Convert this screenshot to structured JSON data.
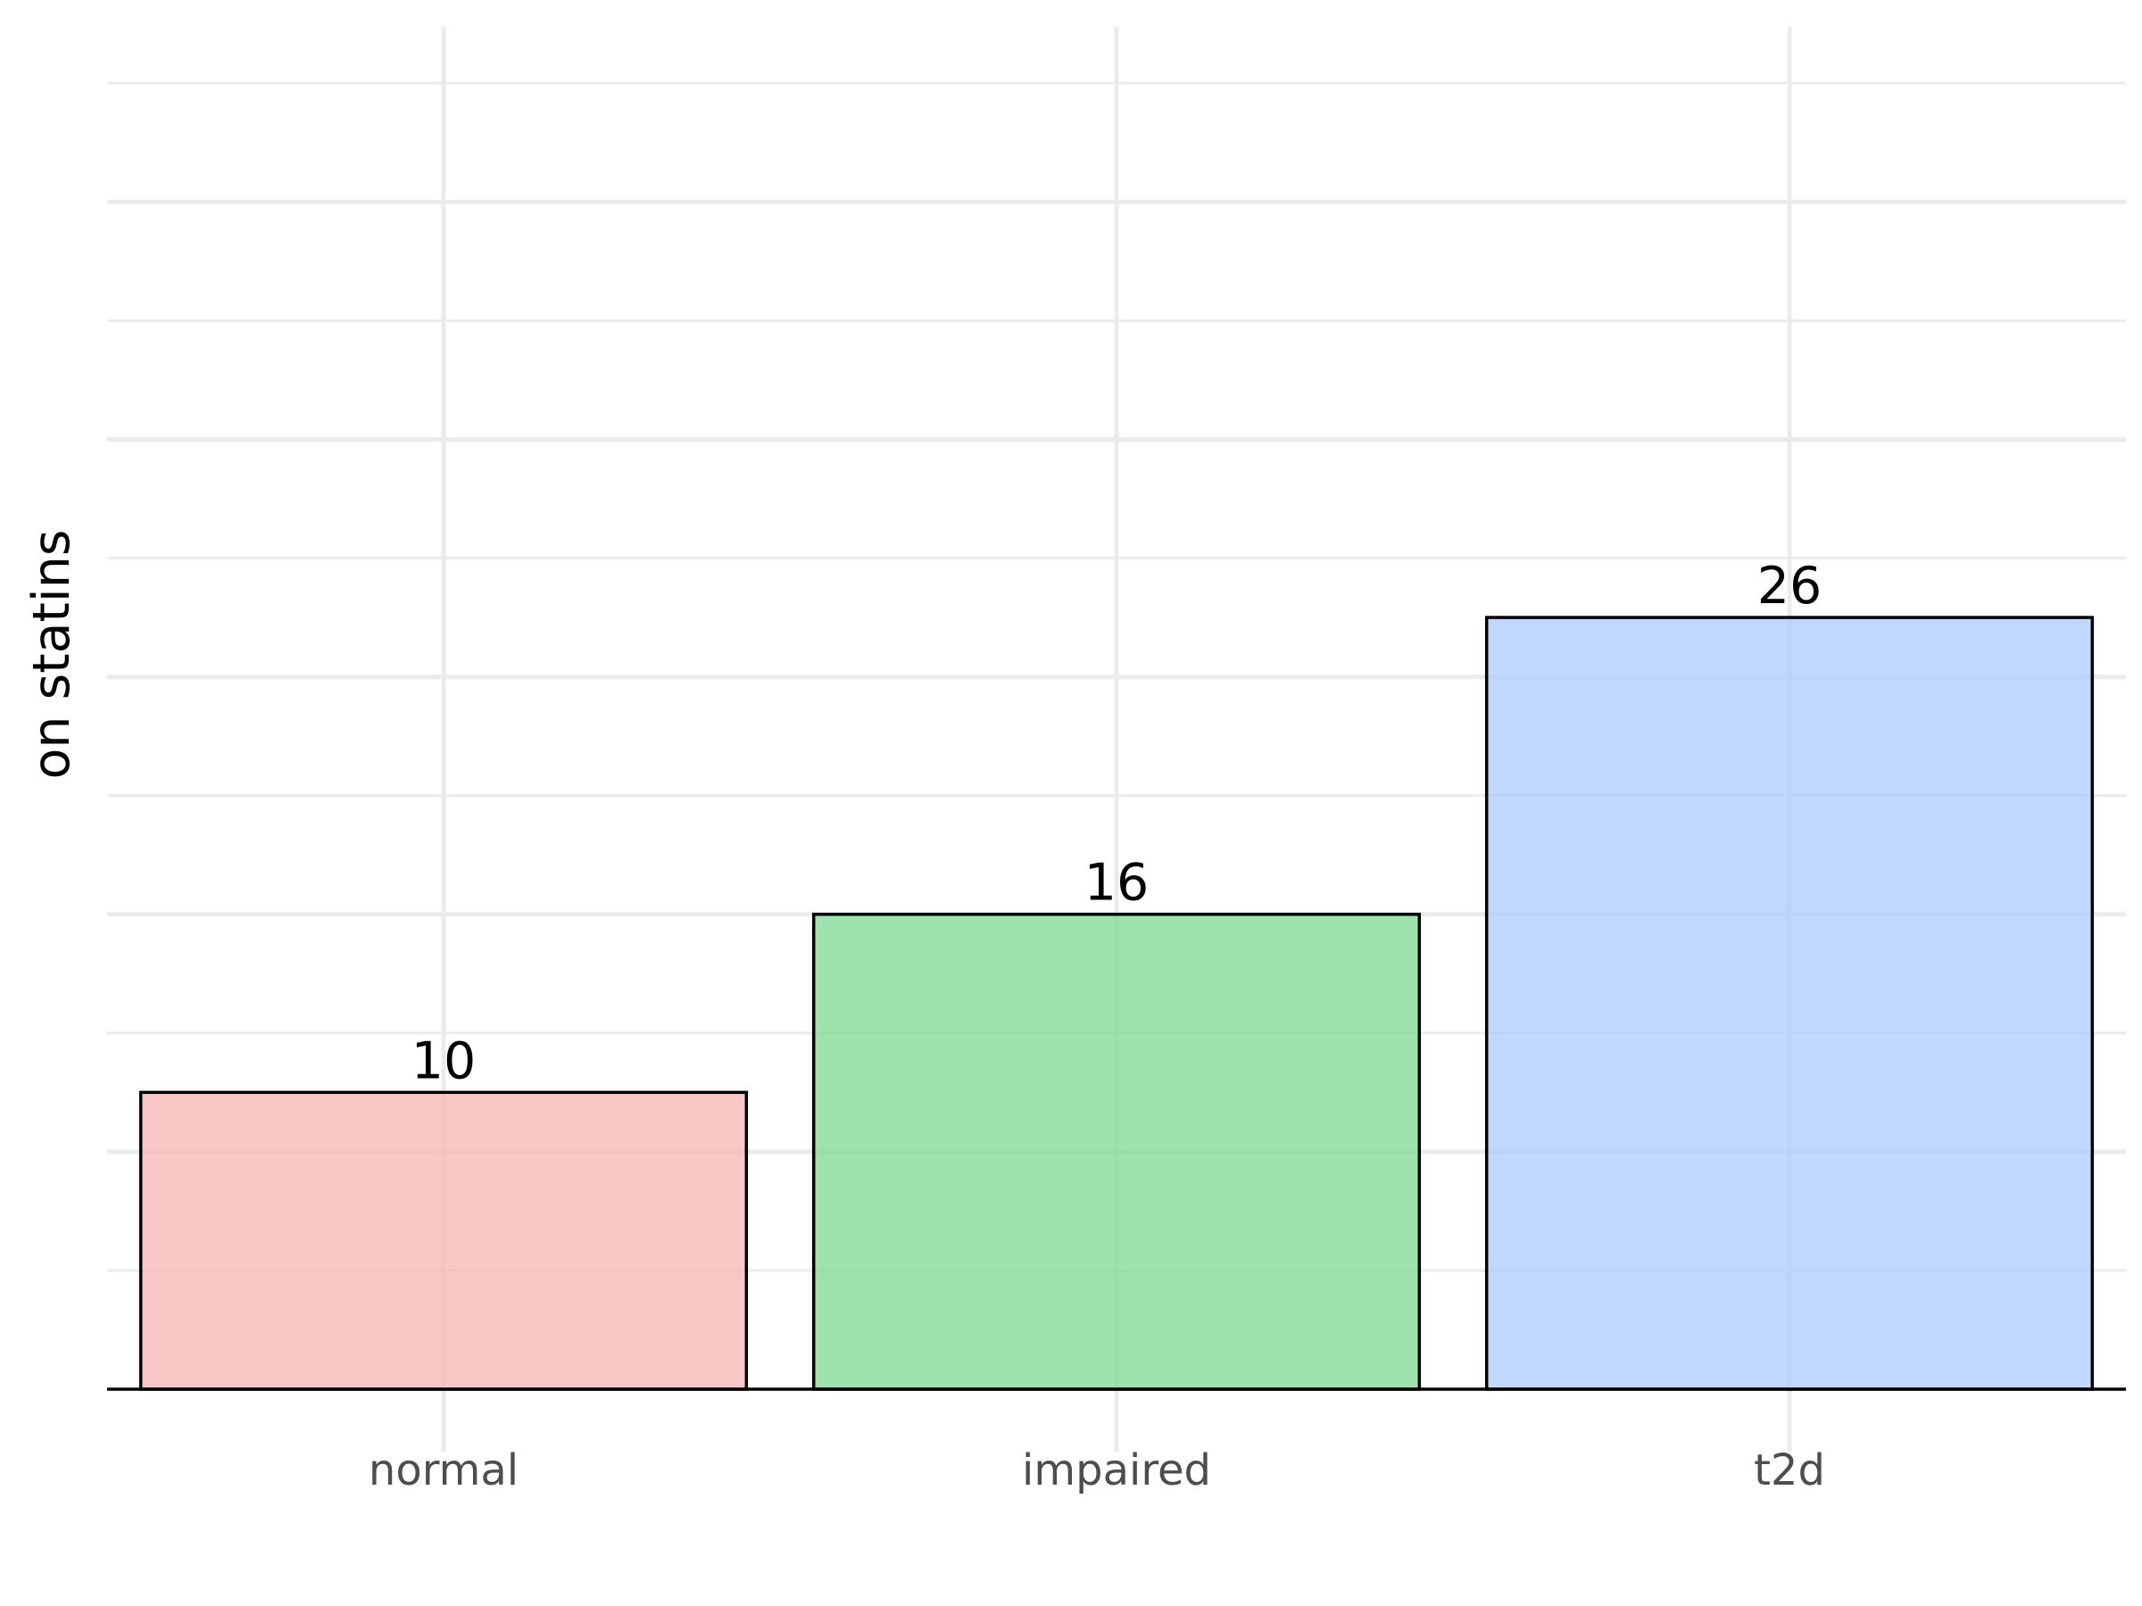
{
  "chart_data": {
    "type": "bar",
    "categories": [
      "normal",
      "impaired",
      "t2d"
    ],
    "values": [
      10,
      16,
      26
    ],
    "data_labels": [
      "10",
      "16",
      "26"
    ],
    "xlabel": "",
    "ylabel": "on statins",
    "ylim": [
      0,
      45
    ],
    "y_ticks_labeled": false,
    "grid": true,
    "colors": [
      "#f8b4b4",
      "#7dd991",
      "#adc9fc"
    ],
    "bar_outline": "#000000",
    "bar_opacity": 0.75
  }
}
